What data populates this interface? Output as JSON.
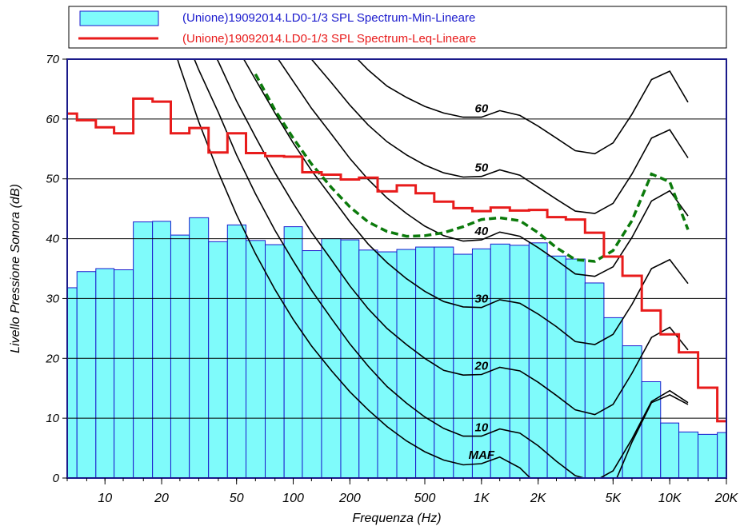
{
  "chart_data": {
    "type": "bar",
    "xlabel": "Frequenza (Hz)",
    "ylabel": "Livello Pressione Sonora (dB)",
    "xscale": "log",
    "xlim": [
      6.3,
      20000
    ],
    "ylim": [
      0,
      70
    ],
    "grid": "horizontal",
    "legend_position": "top",
    "x_tick_labels": [
      {
        "value": 10,
        "label": "10"
      },
      {
        "value": 20,
        "label": "20"
      },
      {
        "value": 50,
        "label": "50"
      },
      {
        "value": 100,
        "label": "100"
      },
      {
        "value": 200,
        "label": "200"
      },
      {
        "value": 500,
        "label": "500"
      },
      {
        "value": 1000,
        "label": "1K"
      },
      {
        "value": 2000,
        "label": "2K"
      },
      {
        "value": 5000,
        "label": "5K"
      },
      {
        "value": 10000,
        "label": "10K"
      },
      {
        "value": 20000,
        "label": "20K"
      }
    ],
    "y_tick_labels": [
      "0",
      "10",
      "20",
      "30",
      "40",
      "50",
      "60",
      "70"
    ],
    "bands": [
      6.3,
      8,
      10,
      12.5,
      16,
      20,
      25,
      31.5,
      40,
      50,
      63,
      80,
      100,
      125,
      160,
      200,
      250,
      315,
      400,
      500,
      630,
      800,
      1000,
      1250,
      1600,
      2000,
      2500,
      3150,
      4000,
      5000,
      6300,
      8000,
      10000,
      12500,
      16000,
      20000
    ],
    "series": [
      {
        "name": "(Unione)19092014.LD0-1/3 SPL Spectrum-Min-Lineare",
        "kind": "bar",
        "color": "#7ffbfb",
        "edge_color": "#1a1acd",
        "values": [
          31.8,
          34.5,
          35.0,
          34.8,
          42.8,
          42.9,
          40.6,
          43.5,
          39.5,
          42.3,
          39.7,
          39.0,
          42.0,
          38.0,
          40.0,
          39.8,
          38.1,
          37.8,
          38.2,
          38.6,
          38.6,
          37.4,
          38.3,
          39.1,
          38.9,
          39.3,
          37.1,
          36.6,
          32.6,
          26.8,
          22.1,
          16.1,
          9.2,
          7.7,
          7.3,
          7.6
        ]
      },
      {
        "name": "(Unione)19092014.LD0-1/3 SPL Spectrum-Leq-Lineare",
        "kind": "step",
        "color": "#e81b1b",
        "values": [
          60.9,
          59.8,
          58.6,
          57.6,
          63.4,
          62.9,
          57.6,
          58.5,
          54.4,
          57.6,
          54.3,
          53.8,
          53.7,
          51.1,
          50.7,
          49.9,
          50.2,
          47.9,
          48.9,
          47.6,
          46.2,
          45.1,
          44.6,
          45.2,
          44.7,
          44.8,
          43.6,
          43.2,
          41.0,
          37.0,
          33.8,
          28.0,
          24.0,
          21.0,
          15.1,
          9.5
        ]
      }
    ],
    "isophon_curves": {
      "color": "#000000",
      "frequencies": [
        20,
        25,
        31.5,
        40,
        50,
        63,
        80,
        100,
        125,
        160,
        200,
        250,
        315,
        400,
        500,
        630,
        800,
        1000,
        1250,
        1600,
        2000,
        2500,
        3150,
        4000,
        5000,
        6300,
        8000,
        10000,
        12500
      ],
      "curves": [
        {
          "label": "MAF",
          "values": [
            78.5,
            68.7,
            59.5,
            51.1,
            44.0,
            37.5,
            31.5,
            26.5,
            22.1,
            17.9,
            14.4,
            11.4,
            8.6,
            6.2,
            4.4,
            3.0,
            2.2,
            2.4,
            3.5,
            1.7,
            -1.3,
            -4.2,
            -6.0,
            -5.4,
            -1.5,
            6.0,
            12.6,
            13.9,
            12.3
          ]
        },
        {
          "label": "10",
          "values": [
            83.8,
            75.8,
            68.2,
            61.1,
            54.0,
            47.5,
            41.4,
            36.3,
            31.4,
            26.6,
            22.4,
            18.7,
            15.3,
            12.5,
            10.2,
            8.3,
            7.0,
            7.0,
            8.2,
            7.5,
            5.4,
            2.8,
            0.4,
            -0.5,
            1.2,
            6.5,
            12.8,
            14.6,
            12.6
          ]
        },
        {
          "label": "20",
          "values": [
            89.6,
            82.7,
            75.9,
            69.6,
            63.0,
            57.0,
            51.0,
            45.9,
            41.1,
            36.4,
            32.1,
            28.3,
            25.0,
            22.3,
            20.0,
            18.0,
            17.2,
            17.3,
            18.5,
            17.9,
            16.0,
            13.8,
            11.4,
            10.6,
            12.3,
            17.5,
            23.5,
            25.2,
            21.4
          ]
        },
        {
          "label": "30",
          "values": [
            95.5,
            89.4,
            83.4,
            78.0,
            72.1,
            66.6,
            61.0,
            56.0,
            51.4,
            46.9,
            42.8,
            39.1,
            36.0,
            33.3,
            31.2,
            29.5,
            28.6,
            28.5,
            29.8,
            29.2,
            27.4,
            25.3,
            22.8,
            22.3,
            24.0,
            29.0,
            35.0,
            36.5,
            32.5
          ]
        },
        {
          "label": "40",
          "values": [
            101.7,
            96.3,
            91.1,
            86.2,
            81.0,
            76.0,
            70.8,
            66.3,
            61.8,
            57.4,
            53.4,
            49.9,
            46.8,
            44.2,
            42.1,
            40.5,
            39.6,
            39.8,
            41.1,
            40.4,
            38.5,
            36.4,
            34.1,
            33.7,
            35.3,
            40.2,
            46.3,
            48.0,
            43.8
          ]
        },
        {
          "label": "50",
          "values": [
            107.0,
            102.0,
            97.1,
            92.5,
            87.7,
            83.0,
            78.2,
            74.0,
            70.0,
            66.0,
            62.3,
            59.0,
            56.2,
            54.0,
            52.3,
            51.0,
            50.3,
            50.4,
            51.5,
            50.6,
            48.6,
            46.6,
            44.6,
            44.2,
            45.9,
            50.8,
            56.8,
            58.2,
            53.5
          ]
        },
        {
          "label": "60",
          "values": [
            112.5,
            108.0,
            103.5,
            99.4,
            95.0,
            90.8,
            86.4,
            82.4,
            78.6,
            74.8,
            71.3,
            68.2,
            65.5,
            63.6,
            62.1,
            61.0,
            60.3,
            60.3,
            61.4,
            60.6,
            58.8,
            56.8,
            54.7,
            54.2,
            56.0,
            60.8,
            66.6,
            68.0,
            62.8
          ]
        }
      ]
    },
    "dashed_curve": {
      "color": "#0b7a0b",
      "frequencies": [
        63,
        80,
        100,
        125,
        160,
        200,
        250,
        315,
        400,
        500,
        630,
        800,
        1000,
        1250,
        1600,
        2000,
        2500,
        3150,
        4000,
        5000,
        6300,
        8000,
        10000,
        12500
      ],
      "values": [
        67.5,
        61.5,
        56.8,
        52.5,
        48.5,
        45.3,
        42.8,
        41.2,
        40.4,
        40.5,
        41.0,
        42.0,
        43.2,
        43.5,
        43.0,
        41.0,
        38.5,
        36.5,
        36.2,
        38.0,
        43.0,
        50.8,
        49.5,
        41.5
      ]
    }
  }
}
